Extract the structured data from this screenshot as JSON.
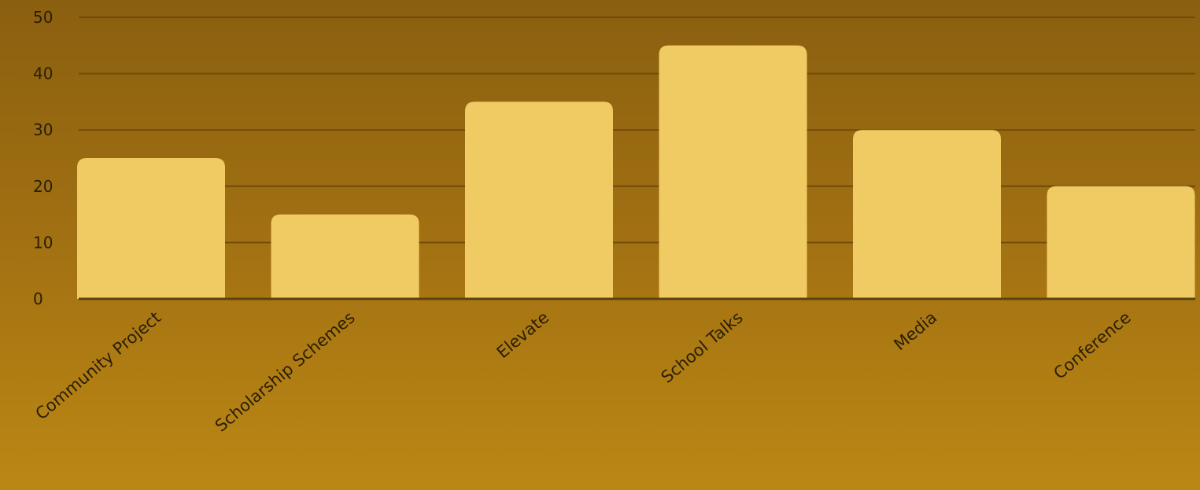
{
  "chart_data": {
    "type": "bar",
    "categories": [
      "Community Project",
      "Scholarship Schemes",
      "Elevate",
      "School Talks",
      "Media",
      "Conference"
    ],
    "values": [
      25,
      15,
      35,
      45,
      30,
      20
    ],
    "title": "",
    "xlabel": "",
    "ylabel": "",
    "ylim": [
      0,
      50
    ],
    "yticks": [
      0,
      10,
      20,
      30,
      40,
      50
    ],
    "grid": true,
    "legend": "none",
    "colors": {
      "bar": "#f0cb63",
      "gridline": "#6e4c0c",
      "axis": "#5e420b",
      "text": "#2a1e06"
    }
  }
}
